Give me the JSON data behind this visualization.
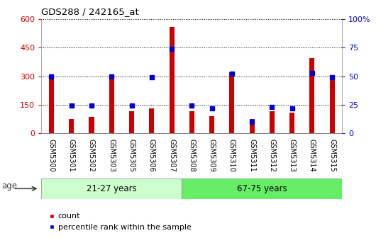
{
  "title": "GDS288 / 242165_at",
  "categories": [
    "GSM5300",
    "GSM5301",
    "GSM5302",
    "GSM5303",
    "GSM5305",
    "GSM5306",
    "GSM5307",
    "GSM5308",
    "GSM5309",
    "GSM5310",
    "GSM5311",
    "GSM5312",
    "GSM5313",
    "GSM5314",
    "GSM5315"
  ],
  "counts": [
    300,
    75,
    85,
    300,
    115,
    130,
    560,
    115,
    90,
    320,
    75,
    115,
    110,
    395,
    300
  ],
  "percentiles": [
    50,
    24,
    24,
    50,
    24,
    49,
    74,
    24,
    22,
    52,
    10,
    23,
    22,
    53,
    49
  ],
  "group1_label": "21-27 years",
  "group2_label": "67-75 years",
  "group1_count": 7,
  "group2_count": 8,
  "bar_color": "#cc0000",
  "dot_color": "#0000cc",
  "group1_bg": "#ccffcc",
  "group2_bg": "#66ee66",
  "ylim_left": [
    0,
    600
  ],
  "ylim_right": [
    0,
    100
  ],
  "yticks_left": [
    0,
    150,
    300,
    450,
    600
  ],
  "yticks_right": [
    0,
    25,
    50,
    75,
    100
  ],
  "ytick_labels_left": [
    "0",
    "150",
    "300",
    "450",
    "600"
  ],
  "ytick_labels_right": [
    "0",
    "25",
    "50",
    "75",
    "100%"
  ],
  "age_label": "age",
  "legend_count": "count",
  "legend_percentile": "percentile rank within the sample",
  "grid_color": "#000000",
  "bar_width": 0.25
}
